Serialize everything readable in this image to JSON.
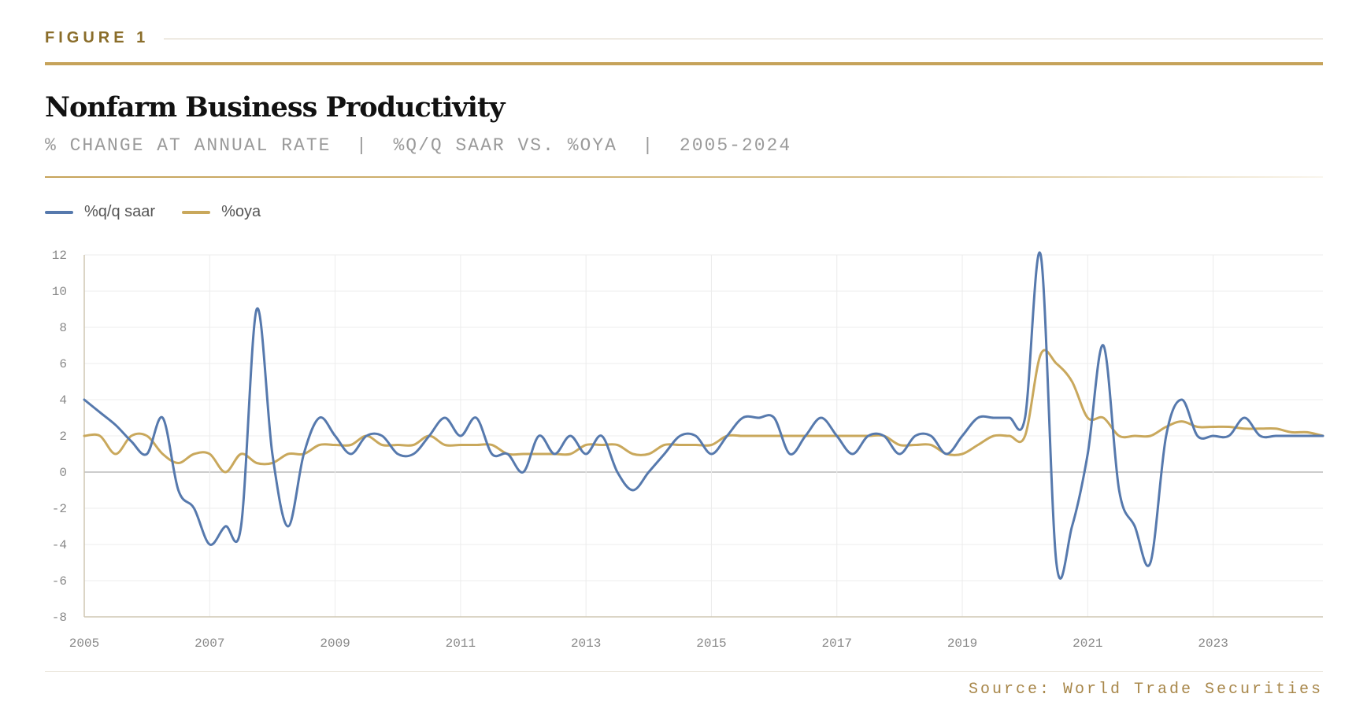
{
  "header": {
    "figure_label": "FIGURE 1",
    "title": "Nonfarm Business Productivity",
    "subtitle": "% CHANGE AT ANNUAL RATE  |  %Q/Q SAAR VS. %OYA  |  2005-2024"
  },
  "source": "Source: World Trade Securities",
  "colors": {
    "qq_series": "#5679ad",
    "oya_series": "#c9a85c",
    "accent": "#c6a35a",
    "grid": "#ececec",
    "zero_line": "#bbbbbb"
  },
  "chart_data": {
    "type": "line",
    "xlim": [
      2005,
      2024.75
    ],
    "ylim": [
      -8,
      12
    ],
    "x_ticks": [
      2005,
      2007,
      2009,
      2011,
      2013,
      2015,
      2017,
      2019,
      2021,
      2023
    ],
    "x_tick_labels": [
      "2005",
      "2007",
      "2009",
      "2011",
      "2013",
      "2015",
      "2017",
      "2019",
      "2021",
      "2023"
    ],
    "y_ticks": [
      12,
      10,
      8,
      6,
      4,
      2,
      0,
      -2,
      -4,
      -6,
      -8
    ],
    "y_tick_labels": [
      "12",
      "10",
      "8",
      "6",
      "4",
      "2",
      "0",
      "-2",
      "-4",
      "-6",
      "-8"
    ],
    "grid": true,
    "legend_position": "top-left",
    "series": [
      {
        "name": "%q/q saar",
        "color": "#5679ad",
        "points": [
          [
            2005.0,
            4
          ],
          [
            2005.25,
            3.3
          ],
          [
            2005.5,
            2.6
          ],
          [
            2005.75,
            1.7
          ],
          [
            2006.0,
            1.0
          ],
          [
            2006.25,
            3.0
          ],
          [
            2006.5,
            -1.0
          ],
          [
            2006.75,
            -2.0
          ],
          [
            2007.0,
            -4.0
          ],
          [
            2007.25,
            -3.0
          ],
          [
            2007.5,
            -3.0
          ],
          [
            2007.75,
            9.0
          ],
          [
            2008.0,
            1.0
          ],
          [
            2008.25,
            -3.0
          ],
          [
            2008.5,
            1.0
          ],
          [
            2008.75,
            3.0
          ],
          [
            2009.0,
            2.0
          ],
          [
            2009.25,
            1.0
          ],
          [
            2009.5,
            2.0
          ],
          [
            2009.75,
            2.0
          ],
          [
            2010.0,
            1.0
          ],
          [
            2010.25,
            1.0
          ],
          [
            2010.5,
            2.0
          ],
          [
            2010.75,
            3.0
          ],
          [
            2011.0,
            2.0
          ],
          [
            2011.25,
            3.0
          ],
          [
            2011.5,
            1.0
          ],
          [
            2011.75,
            1.0
          ],
          [
            2012.0,
            0.0
          ],
          [
            2012.25,
            2.0
          ],
          [
            2012.5,
            1.0
          ],
          [
            2012.75,
            2.0
          ],
          [
            2013.0,
            1.0
          ],
          [
            2013.25,
            2.0
          ],
          [
            2013.5,
            0.0
          ],
          [
            2013.75,
            -1.0
          ],
          [
            2014.0,
            0.0
          ],
          [
            2014.25,
            1.0
          ],
          [
            2014.5,
            2.0
          ],
          [
            2014.75,
            2.0
          ],
          [
            2015.0,
            1.0
          ],
          [
            2015.25,
            2.0
          ],
          [
            2015.5,
            3.0
          ],
          [
            2015.75,
            3.0
          ],
          [
            2016.0,
            3.0
          ],
          [
            2016.25,
            1.0
          ],
          [
            2016.5,
            2.0
          ],
          [
            2016.75,
            3.0
          ],
          [
            2017.0,
            2.0
          ],
          [
            2017.25,
            1.0
          ],
          [
            2017.5,
            2.0
          ],
          [
            2017.75,
            2.0
          ],
          [
            2018.0,
            1.0
          ],
          [
            2018.25,
            2.0
          ],
          [
            2018.5,
            2.0
          ],
          [
            2018.75,
            1.0
          ],
          [
            2019.0,
            2.0
          ],
          [
            2019.25,
            3.0
          ],
          [
            2019.5,
            3.0
          ],
          [
            2019.75,
            3.0
          ],
          [
            2020.0,
            3.0
          ],
          [
            2020.25,
            12.0
          ],
          [
            2020.5,
            -5.0
          ],
          [
            2020.75,
            -3.0
          ],
          [
            2021.0,
            1.0
          ],
          [
            2021.25,
            7.0
          ],
          [
            2021.5,
            -1.0
          ],
          [
            2021.75,
            -3.0
          ],
          [
            2022.0,
            -5.0
          ],
          [
            2022.25,
            2.0
          ],
          [
            2022.5,
            4.0
          ],
          [
            2022.75,
            2.0
          ],
          [
            2023.0,
            2.0
          ],
          [
            2023.25,
            2.0
          ],
          [
            2023.5,
            3.0
          ],
          [
            2023.75,
            2.0
          ],
          [
            2024.0,
            2.0
          ],
          [
            2024.25,
            2.0
          ],
          [
            2024.5,
            2.0
          ],
          [
            2024.75,
            2.0
          ]
        ]
      },
      {
        "name": "%oya",
        "color": "#c9a85c",
        "points": [
          [
            2005.0,
            2.0
          ],
          [
            2005.25,
            2.0
          ],
          [
            2005.5,
            1.0
          ],
          [
            2005.75,
            2.0
          ],
          [
            2006.0,
            2.0
          ],
          [
            2006.25,
            1.0
          ],
          [
            2006.5,
            0.5
          ],
          [
            2006.75,
            1.0
          ],
          [
            2007.0,
            1.0
          ],
          [
            2007.25,
            0.0
          ],
          [
            2007.5,
            1.0
          ],
          [
            2007.75,
            0.5
          ],
          [
            2008.0,
            0.5
          ],
          [
            2008.25,
            1.0
          ],
          [
            2008.5,
            1.0
          ],
          [
            2008.75,
            1.5
          ],
          [
            2009.0,
            1.5
          ],
          [
            2009.25,
            1.5
          ],
          [
            2009.5,
            2.0
          ],
          [
            2009.75,
            1.5
          ],
          [
            2010.0,
            1.5
          ],
          [
            2010.25,
            1.5
          ],
          [
            2010.5,
            2.0
          ],
          [
            2010.75,
            1.5
          ],
          [
            2011.0,
            1.5
          ],
          [
            2011.25,
            1.5
          ],
          [
            2011.5,
            1.5
          ],
          [
            2011.75,
            1.0
          ],
          [
            2012.0,
            1.0
          ],
          [
            2012.25,
            1.0
          ],
          [
            2012.5,
            1.0
          ],
          [
            2012.75,
            1.0
          ],
          [
            2013.0,
            1.5
          ],
          [
            2013.25,
            1.5
          ],
          [
            2013.5,
            1.5
          ],
          [
            2013.75,
            1.0
          ],
          [
            2014.0,
            1.0
          ],
          [
            2014.25,
            1.5
          ],
          [
            2014.5,
            1.5
          ],
          [
            2014.75,
            1.5
          ],
          [
            2015.0,
            1.5
          ],
          [
            2015.25,
            2.0
          ],
          [
            2015.5,
            2.0
          ],
          [
            2015.75,
            2.0
          ],
          [
            2016.0,
            2.0
          ],
          [
            2016.25,
            2.0
          ],
          [
            2016.5,
            2.0
          ],
          [
            2016.75,
            2.0
          ],
          [
            2017.0,
            2.0
          ],
          [
            2017.25,
            2.0
          ],
          [
            2017.5,
            2.0
          ],
          [
            2017.75,
            2.0
          ],
          [
            2018.0,
            1.5
          ],
          [
            2018.25,
            1.5
          ],
          [
            2018.5,
            1.5
          ],
          [
            2018.75,
            1.0
          ],
          [
            2019.0,
            1.0
          ],
          [
            2019.25,
            1.5
          ],
          [
            2019.5,
            2.0
          ],
          [
            2019.75,
            2.0
          ],
          [
            2020.0,
            2.0
          ],
          [
            2020.25,
            6.5
          ],
          [
            2020.5,
            6.0
          ],
          [
            2020.75,
            5.0
          ],
          [
            2021.0,
            3.0
          ],
          [
            2021.25,
            3.0
          ],
          [
            2021.5,
            2.0
          ],
          [
            2021.75,
            2.0
          ],
          [
            2022.0,
            2.0
          ],
          [
            2022.25,
            2.5
          ],
          [
            2022.5,
            2.8
          ],
          [
            2022.75,
            2.5
          ],
          [
            2023.0,
            2.5
          ],
          [
            2023.25,
            2.5
          ],
          [
            2023.5,
            2.4
          ],
          [
            2023.75,
            2.4
          ],
          [
            2024.0,
            2.4
          ],
          [
            2024.25,
            2.2
          ],
          [
            2024.5,
            2.2
          ],
          [
            2024.75,
            2.0
          ]
        ]
      }
    ]
  }
}
